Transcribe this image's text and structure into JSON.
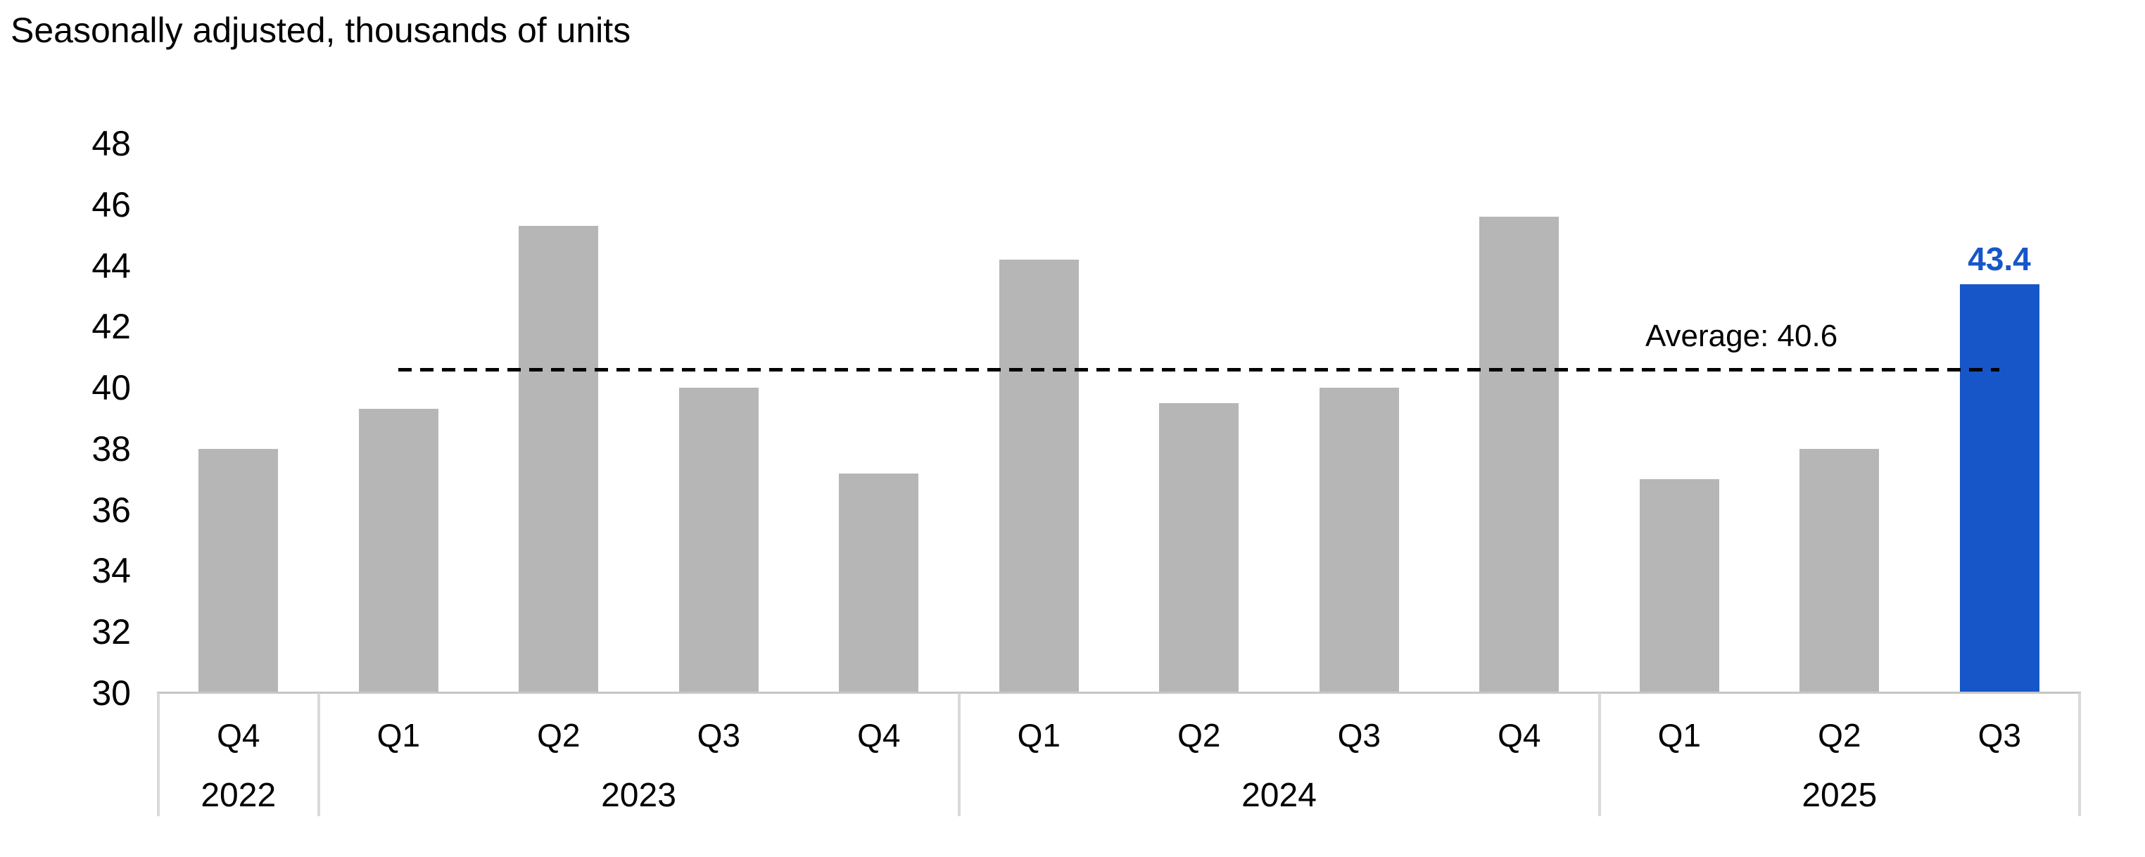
{
  "chart_data": {
    "type": "bar",
    "title": "Seasonally adjusted, thousands of units",
    "categories": [
      "Q4",
      "Q1",
      "Q2",
      "Q3",
      "Q4",
      "Q1",
      "Q2",
      "Q3",
      "Q4",
      "Q1",
      "Q2",
      "Q3"
    ],
    "year_groups": [
      {
        "label": "2022",
        "span": 1
      },
      {
        "label": "2023",
        "span": 4
      },
      {
        "label": "2024",
        "span": 4
      },
      {
        "label": "2025",
        "span": 3
      }
    ],
    "values": [
      38.0,
      39.3,
      45.3,
      40.0,
      37.2,
      44.2,
      39.5,
      40.0,
      45.6,
      37.0,
      38.0,
      43.4
    ],
    "highlight_index": 11,
    "highlight_label": "43.4",
    "average": 40.6,
    "average_label": "Average: 40.6",
    "average_line_span": [
      "Q1 2023",
      "Q3 2025"
    ],
    "y_ticks": [
      30,
      32,
      34,
      36,
      38,
      40,
      42,
      44,
      46,
      48
    ],
    "ylim": [
      30,
      48
    ],
    "grid": false,
    "legend": "none",
    "colors": {
      "bar": "#b6b6b6",
      "highlight": "#1656c9",
      "highlight_text": "#1656c9",
      "average_line": "#000000",
      "axis_line": "#c6c6c6",
      "group_divider": "#d9d9d9",
      "text": "#000000"
    }
  }
}
